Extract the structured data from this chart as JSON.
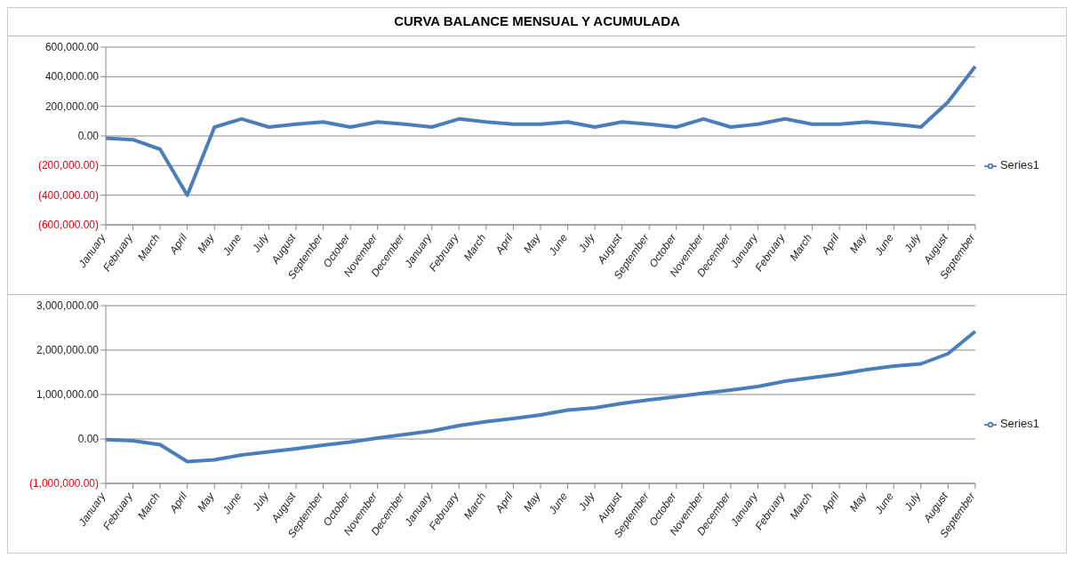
{
  "chart_data": [
    {
      "type": "line",
      "title": "CURVA BALANCE MENSUAL Y ACUMULADA",
      "categories": [
        "January",
        "February",
        "March",
        "April",
        "May",
        "June",
        "July",
        "August",
        "September",
        "October",
        "November",
        "December",
        "January",
        "February",
        "March",
        "April",
        "May",
        "June",
        "July",
        "August",
        "September",
        "October",
        "November",
        "December",
        "January",
        "February",
        "March",
        "April",
        "May",
        "June",
        "July",
        "August",
        "September"
      ],
      "series": [
        {
          "name": "Series1",
          "color": "#4a7ebb",
          "values": [
            -15000,
            -25000,
            -90000,
            -400000,
            60000,
            115000,
            60000,
            80000,
            95000,
            60000,
            95000,
            80000,
            60000,
            115000,
            95000,
            80000,
            80000,
            95000,
            60000,
            95000,
            80000,
            60000,
            115000,
            60000,
            80000,
            115000,
            80000,
            80000,
            95000,
            80000,
            60000,
            230000,
            470000
          ]
        }
      ],
      "ylim": [
        -600000,
        600000
      ],
      "yticks": [
        {
          "value": -600000,
          "label": "(600,000.00)"
        },
        {
          "value": -400000,
          "label": "(400,000.00)"
        },
        {
          "value": -200000,
          "label": "(200,000.00)"
        },
        {
          "value": 0,
          "label": "0.00"
        },
        {
          "value": 200000,
          "label": "200,000.00"
        },
        {
          "value": 400000,
          "label": "400,000.00"
        },
        {
          "value": 600000,
          "label": "600,000.00"
        }
      ],
      "grid": "y",
      "legend": "right",
      "marker": "none"
    },
    {
      "type": "line",
      "categories": [
        "January",
        "February",
        "March",
        "April",
        "May",
        "June",
        "July",
        "August",
        "September",
        "October",
        "November",
        "December",
        "January",
        "February",
        "March",
        "April",
        "May",
        "June",
        "July",
        "August",
        "September",
        "October",
        "November",
        "December",
        "January",
        "February",
        "March",
        "April",
        "May",
        "June",
        "July",
        "August",
        "September"
      ],
      "series": [
        {
          "name": "Series1",
          "color": "#4a7ebb",
          "values": [
            -15000,
            -40000,
            -130000,
            -510000,
            -470000,
            -360000,
            -290000,
            -220000,
            -140000,
            -70000,
            20000,
            100000,
            180000,
            300000,
            390000,
            460000,
            540000,
            650000,
            700000,
            800000,
            880000,
            950000,
            1030000,
            1100000,
            1180000,
            1300000,
            1380000,
            1460000,
            1560000,
            1640000,
            1690000,
            1920000,
            2420000
          ]
        }
      ],
      "ylim": [
        -1000000,
        3000000
      ],
      "yticks": [
        {
          "value": -1000000,
          "label": "(1,000,000.00)"
        },
        {
          "value": 0,
          "label": "0.00"
        },
        {
          "value": 1000000,
          "label": "1,000,000.00"
        },
        {
          "value": 2000000,
          "label": "2,000,000.00"
        },
        {
          "value": 3000000,
          "label": "3,000,000.00"
        }
      ],
      "grid": "y",
      "legend": "right",
      "marker": "none"
    }
  ]
}
